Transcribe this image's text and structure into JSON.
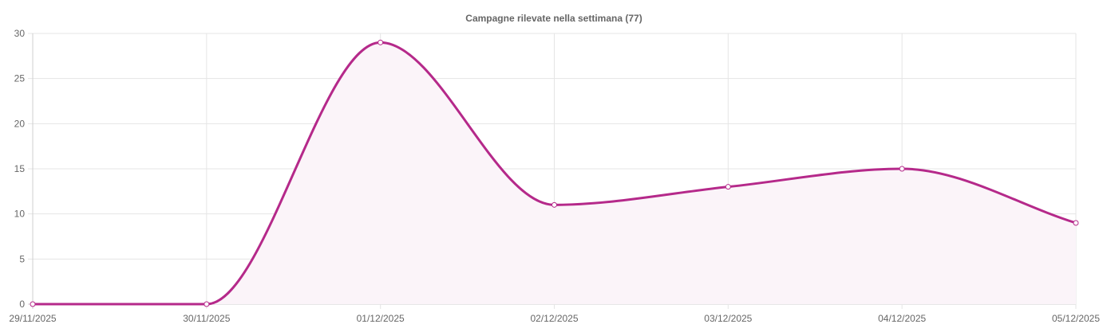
{
  "chart_data": {
    "type": "line",
    "title": "Campagne rilevate nella settimana (77)",
    "xlabel": "",
    "ylabel": "",
    "categories": [
      "29/11/2025",
      "30/11/2025",
      "01/12/2025",
      "02/12/2025",
      "03/12/2025",
      "04/12/2025",
      "05/12/2025"
    ],
    "series": [
      {
        "values": [
          0,
          0,
          29,
          11,
          13,
          15,
          9
        ]
      }
    ],
    "ylim": [
      0,
      30
    ],
    "yticks": [
      0,
      5,
      10,
      15,
      20,
      25,
      30
    ],
    "grid": true,
    "legend": "none",
    "area_fill": true,
    "colors": {
      "line": "#b5298a",
      "fill": "#fbf4f9",
      "grid": "#e5e5e5",
      "text": "#666666"
    }
  }
}
